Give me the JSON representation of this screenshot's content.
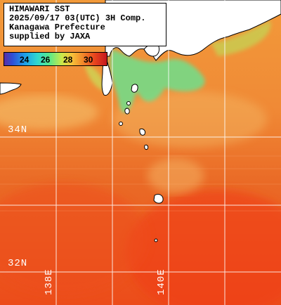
{
  "header": {
    "line1": "HIMAWARI SST",
    "line2": "2025/09/17 03(UTC) 3H Comp.",
    "line3": "Kanagawa Prefecture",
    "line4": "supplied by JAXA"
  },
  "colorbar": {
    "ticks": [
      "24",
      "26",
      "28",
      "30"
    ],
    "unit_hint": "sea surface temperature (°C)"
  },
  "grid": {
    "lat_labels": [
      "34N",
      "32N"
    ],
    "lon_labels": [
      "138E",
      "140E"
    ]
  },
  "colors": {
    "warm_sea": "#e8581e",
    "hot_sea": "#f03a12",
    "cool_sea": "#f2a640",
    "cold_band": "#5be08a",
    "land": "#ffffff",
    "grid_line": "#ffffff"
  }
}
